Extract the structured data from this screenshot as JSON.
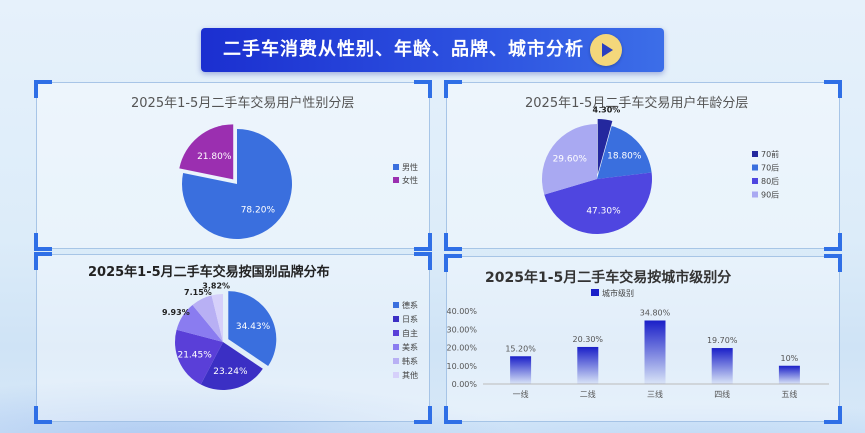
{
  "header": {
    "title": "二手车消费从性别、年龄、品牌、城市分析"
  },
  "colors": {
    "male": "#3a6fde",
    "female": "#9b2fb0",
    "age70前": "#24289e",
    "age70后": "#3a6fde",
    "age80后": "#4f46e0",
    "age90后": "#a9a9f2",
    "brand_德系": "#3a6fde",
    "brand_日系": "#3b2fc4",
    "brand_自主": "#5a3fd8",
    "brand_美系": "#8a7cf0",
    "brand_韩系": "#b8b0f4",
    "brand_其他": "#d6d0fa",
    "bar": "#1a1fc8"
  },
  "chart_data": [
    {
      "type": "pie",
      "title": "2025年1-5月二手车交易用户性别分层",
      "labels": [
        "男性",
        "女性"
      ],
      "values": [
        78.2,
        21.8
      ],
      "data_labels": [
        "78.20%",
        "21.80%"
      ],
      "legend": "right"
    },
    {
      "type": "pie",
      "title": "2025年1-5月二手车交易用户年龄分层",
      "labels": [
        "70前",
        "70后",
        "80后",
        "90后"
      ],
      "values": [
        4.3,
        18.8,
        47.3,
        29.6
      ],
      "data_labels": [
        "4.30%",
        "18.80%",
        "47.30%",
        "29.60%"
      ],
      "legend": "right"
    },
    {
      "type": "pie",
      "title": "2025年1-5月二手车交易按国别品牌分布",
      "labels": [
        "德系",
        "日系",
        "自主",
        "美系",
        "韩系",
        "其他"
      ],
      "values": [
        34.43,
        23.24,
        21.45,
        9.93,
        7.15,
        3.82
      ],
      "data_labels": [
        "34.43%",
        "23.24%",
        "21.45%",
        "9.93%",
        "7.15%",
        "3.82%"
      ],
      "legend": "right"
    },
    {
      "type": "bar",
      "title": "2025年1-5月二手车交易按城市级别分",
      "series_name": "城市级别",
      "categories": [
        "一线",
        "二线",
        "三线",
        "四线",
        "五线"
      ],
      "values": [
        15.2,
        20.3,
        34.8,
        19.7,
        10
      ],
      "data_labels": [
        "15.20%",
        "20.30%",
        "34.80%",
        "19.70%",
        "10%"
      ],
      "yticks": [
        "0.00%",
        "10.00%",
        "20.00%",
        "30.00%",
        "40.00%"
      ],
      "ylim": [
        0,
        40
      ]
    }
  ]
}
